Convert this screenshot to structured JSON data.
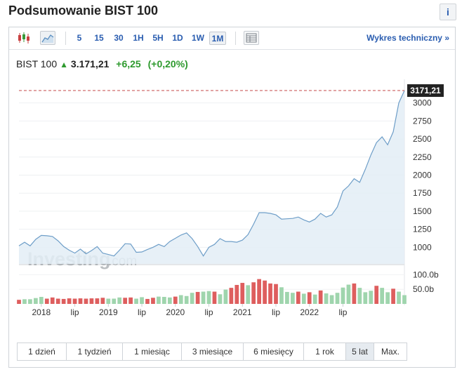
{
  "header": {
    "title": "Podsumowanie BIST 100",
    "info_label": "i"
  },
  "toolbar": {
    "intervals": [
      "5",
      "15",
      "30",
      "1H",
      "5H",
      "1D",
      "1W",
      "1M"
    ],
    "active_interval": "1M",
    "tech_link": "Wykres techniczny »",
    "icons": [
      "candlestick-chart-icon",
      "area-chart-icon",
      "table-view-icon"
    ]
  },
  "quote": {
    "name": "BIST 100",
    "price": "3.171,21",
    "change": "+6,25",
    "change_pct": "(+0,20%)"
  },
  "watermark": {
    "brand": "Investing",
    "suffix": ".com"
  },
  "periods": {
    "items": [
      "1 dzień",
      "1 tydzień",
      "1 miesiąc",
      "3 miesiące",
      "6 miesięcy",
      "1 rok",
      "5 lat",
      "Max."
    ],
    "active": "5 lat"
  },
  "chart_data": {
    "type": "area",
    "last_price_label": "3171,21",
    "last_price": 3171.21,
    "y_ticks": [
      1000,
      1250,
      1500,
      1750,
      2000,
      2250,
      2500,
      2750,
      3000
    ],
    "y_tick_labels": [
      "1000",
      "1250",
      "1500",
      "1750",
      "2000",
      "2250",
      "2500",
      "2750",
      "3000"
    ],
    "volume_ticks": [
      50,
      100
    ],
    "volume_tick_labels": [
      "50.0b",
      "100.0b"
    ],
    "x_tick_labels": [
      "2018",
      "lip",
      "2019",
      "lip",
      "2020",
      "lip",
      "2021",
      "lip",
      "2022",
      "lip"
    ],
    "x_tick_dates": [
      "2018-01",
      "2018-07",
      "2019-01",
      "2019-07",
      "2020-01",
      "2020-07",
      "2021-01",
      "2021-07",
      "2022-01",
      "2022-07"
    ],
    "colors": {
      "line": "#6e9ec8",
      "fill": "#e3edf6",
      "vol_up": "#9fd5ad",
      "vol_down": "#de5e5e",
      "price_line": "#c44a4a",
      "price_box": "#222222"
    },
    "price_series": {
      "start": "2017-09",
      "values": [
        1020,
        1070,
        1020,
        1110,
        1165,
        1160,
        1150,
        1090,
        1010,
        960,
        920,
        975,
        910,
        955,
        1010,
        920,
        900,
        880,
        960,
        1050,
        1045,
        930,
        935,
        970,
        1000,
        1040,
        1010,
        1080,
        1125,
        1170,
        1200,
        1120,
        1010,
        880,
        1000,
        1040,
        1120,
        1080,
        1080,
        1070,
        1100,
        1175,
        1320,
        1480,
        1480,
        1470,
        1450,
        1390,
        1395,
        1400,
        1420,
        1380,
        1350,
        1390,
        1470,
        1420,
        1450,
        1560,
        1780,
        1850,
        1950,
        1900,
        2080,
        2280,
        2450,
        2530,
        2420,
        2600,
        3000,
        3171
      ]
    },
    "volume_series": {
      "start": "2017-09",
      "values": [
        14,
        16,
        16,
        20,
        24,
        18,
        22,
        18,
        17,
        19,
        18,
        19,
        18,
        19,
        19,
        21,
        18,
        18,
        22,
        21,
        22,
        18,
        23,
        17,
        21,
        25,
        24,
        22,
        25,
        30,
        27,
        38,
        41,
        42,
        44,
        42,
        33,
        49,
        55,
        65,
        72,
        64,
        74,
        85,
        80,
        70,
        68,
        57,
        41,
        38,
        42,
        35,
        40,
        32,
        46,
        36,
        30,
        38,
        56,
        66,
        70,
        55,
        40,
        45,
        62,
        55,
        40,
        52,
        42,
        30
      ],
      "directions": [
        "d",
        "u",
        "u",
        "u",
        "u",
        "d",
        "d",
        "d",
        "d",
        "d",
        "d",
        "d",
        "d",
        "d",
        "d",
        "d",
        "u",
        "u",
        "u",
        "d",
        "d",
        "u",
        "u",
        "d",
        "d",
        "u",
        "u",
        "u",
        "d",
        "u",
        "u",
        "u",
        "d",
        "u",
        "u",
        "d",
        "u",
        "u",
        "d",
        "d",
        "d",
        "u",
        "d",
        "d",
        "d",
        "d",
        "d",
        "u",
        "u",
        "u",
        "d",
        "u",
        "d",
        "u",
        "d",
        "u",
        "u",
        "u",
        "u",
        "u",
        "d",
        "u",
        "u",
        "u",
        "d",
        "u",
        "u",
        "d",
        "u",
        "u"
      ]
    }
  }
}
